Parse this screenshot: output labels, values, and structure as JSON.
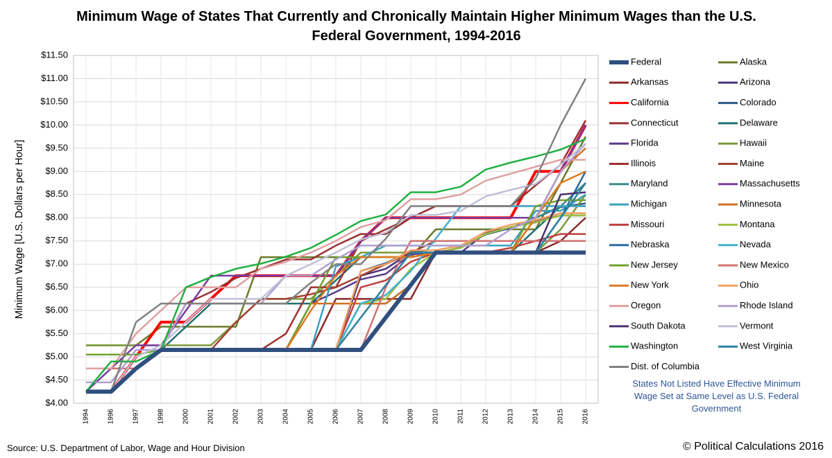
{
  "chart_data": {
    "type": "line",
    "title": "Minimum Wage of States That Currently and Chronically Maintain Higher Minimum Wages than the U.S. Federal Government, 1994-2016",
    "y_label": "Minimum Wage [U.S. Dollars per Hour]",
    "note": "States Not Listed Have Effective Minimum Wage Set at Same Level as U.S. Federal Government",
    "source": "Source: U.S. Department of Labor, Wage and Hour Division",
    "copyright": "© Political Calculations 2016",
    "grid": true,
    "ylim": [
      4.0,
      11.5
    ],
    "yticks": [
      {
        "value": 4.0,
        "label": "$4.00"
      },
      {
        "value": 4.5,
        "label": "$4.50"
      },
      {
        "value": 5.0,
        "label": "$5.00"
      },
      {
        "value": 5.5,
        "label": "$5.50"
      },
      {
        "value": 6.0,
        "label": "$6.00"
      },
      {
        "value": 6.5,
        "label": "$6.50"
      },
      {
        "value": 7.0,
        "label": "$7.00"
      },
      {
        "value": 7.5,
        "label": "$7.50"
      },
      {
        "value": 8.0,
        "label": "$8.00"
      },
      {
        "value": 8.5,
        "label": "$8.50"
      },
      {
        "value": 9.0,
        "label": "$9.00"
      },
      {
        "value": 9.5,
        "label": "$9.50"
      },
      {
        "value": 10.0,
        "label": "$10.00"
      },
      {
        "value": 10.5,
        "label": "$10.50"
      },
      {
        "value": 11.0,
        "label": "$11.00"
      },
      {
        "value": 11.5,
        "label": "$11.50"
      }
    ],
    "categories": [
      "1994",
      "1996",
      "1997",
      "1998",
      "2000",
      "2001",
      "2002",
      "2003",
      "2004",
      "2005",
      "2006",
      "2007",
      "2008",
      "2009",
      "2010",
      "2011",
      "2012",
      "2013",
      "2014",
      "2015",
      "2016"
    ],
    "series": [
      {
        "name": "Federal",
        "color": "#2f4f7f",
        "values": [
          4.25,
          4.25,
          4.75,
          5.15,
          5.15,
          5.15,
          5.15,
          5.15,
          5.15,
          5.15,
          5.15,
          5.15,
          5.85,
          6.55,
          7.25,
          7.25,
          7.25,
          7.25,
          7.25,
          7.25,
          7.25
        ]
      },
      {
        "name": "Alaska",
        "color": "#6b7a2a",
        "values": [
          5.25,
          5.25,
          5.25,
          5.65,
          5.65,
          5.65,
          5.65,
          7.15,
          7.15,
          7.15,
          7.15,
          7.15,
          7.15,
          7.15,
          7.75,
          7.75,
          7.75,
          7.75,
          7.75,
          8.75,
          9.75
        ]
      },
      {
        "name": "Arkansas",
        "color": "#8b2a2a",
        "values": [
          4.25,
          4.25,
          4.75,
          5.15,
          5.15,
          5.15,
          5.15,
          5.15,
          5.15,
          5.15,
          6.25,
          6.25,
          6.25,
          6.25,
          7.25,
          7.25,
          7.25,
          7.25,
          7.25,
          7.5,
          8.0
        ]
      },
      {
        "name": "Arizona",
        "color": "#4b3278",
        "values": [
          4.25,
          4.25,
          4.75,
          5.15,
          5.15,
          5.15,
          5.15,
          5.15,
          5.15,
          5.15,
          5.15,
          6.75,
          6.9,
          7.25,
          7.25,
          7.35,
          7.65,
          7.8,
          7.9,
          8.05,
          8.05
        ]
      },
      {
        "name": "California",
        "color": "#ff0000",
        "values": [
          4.25,
          4.25,
          5.0,
          5.75,
          5.75,
          6.25,
          6.75,
          6.75,
          6.75,
          6.75,
          6.75,
          7.5,
          8.0,
          8.0,
          8.0,
          8.0,
          8.0,
          8.0,
          9.0,
          9.0,
          10.0
        ]
      },
      {
        "name": "Colorado",
        "color": "#2a5a8a",
        "values": [
          4.25,
          4.25,
          4.75,
          5.15,
          5.15,
          5.15,
          5.15,
          5.15,
          5.15,
          5.15,
          5.15,
          6.85,
          7.02,
          7.28,
          7.24,
          7.36,
          7.64,
          7.78,
          8.0,
          8.23,
          8.31
        ]
      },
      {
        "name": "Connecticut",
        "color": "#9a3030",
        "values": [
          4.27,
          4.27,
          4.77,
          5.18,
          6.15,
          6.4,
          6.7,
          6.9,
          7.1,
          7.1,
          7.4,
          7.65,
          7.65,
          8.0,
          8.25,
          8.25,
          8.25,
          8.25,
          8.7,
          9.15,
          10.1
        ]
      },
      {
        "name": "Delaware",
        "color": "#1f7070",
        "values": [
          4.25,
          4.25,
          4.75,
          5.15,
          5.65,
          6.15,
          6.15,
          6.15,
          6.15,
          6.15,
          6.65,
          7.15,
          7.15,
          7.15,
          7.25,
          7.25,
          7.25,
          7.25,
          7.75,
          8.25,
          8.25
        ]
      },
      {
        "name": "Florida",
        "color": "#5a3a8a",
        "values": [
          4.25,
          4.25,
          4.75,
          5.15,
          5.15,
          5.15,
          5.15,
          5.15,
          5.15,
          6.15,
          6.4,
          6.67,
          6.79,
          7.21,
          7.25,
          7.25,
          7.67,
          7.79,
          7.93,
          8.05,
          8.05
        ]
      },
      {
        "name": "Hawaii",
        "color": "#7a9a3a",
        "values": [
          5.25,
          5.25,
          5.25,
          5.25,
          5.25,
          5.25,
          5.75,
          6.25,
          6.25,
          6.25,
          6.75,
          7.25,
          7.25,
          7.25,
          7.25,
          7.25,
          7.25,
          7.25,
          7.25,
          7.75,
          8.5
        ]
      },
      {
        "name": "Illinois",
        "color": "#a03030",
        "values": [
          4.25,
          4.25,
          4.75,
          5.15,
          5.15,
          5.15,
          5.15,
          5.15,
          5.5,
          6.5,
          6.5,
          7.5,
          7.75,
          8.0,
          8.25,
          8.25,
          8.25,
          8.25,
          8.25,
          8.25,
          8.25
        ]
      },
      {
        "name": "Maine",
        "color": "#a04030",
        "values": [
          4.25,
          4.25,
          4.75,
          5.15,
          5.15,
          5.15,
          5.75,
          6.25,
          6.25,
          6.35,
          6.5,
          6.75,
          7.0,
          7.25,
          7.5,
          7.5,
          7.5,
          7.5,
          7.5,
          7.5,
          7.5
        ]
      },
      {
        "name": "Maryland",
        "color": "#3a8a8a",
        "values": [
          4.25,
          4.25,
          4.75,
          5.15,
          5.15,
          5.15,
          5.15,
          5.15,
          5.15,
          5.15,
          5.15,
          6.15,
          6.15,
          6.55,
          7.25,
          7.25,
          7.25,
          7.25,
          8.0,
          8.25,
          8.75
        ]
      },
      {
        "name": "Massachusetts",
        "color": "#7a3aa0",
        "values": [
          4.25,
          4.75,
          5.25,
          5.25,
          6.0,
          6.75,
          6.75,
          6.75,
          6.75,
          6.75,
          6.75,
          7.5,
          8.0,
          8.0,
          8.0,
          8.0,
          8.0,
          8.0,
          8.0,
          9.0,
          10.0
        ]
      },
      {
        "name": "Michigan",
        "color": "#3aa0c0",
        "values": [
          4.25,
          4.25,
          4.75,
          5.15,
          5.15,
          5.15,
          5.15,
          5.15,
          5.15,
          5.15,
          6.95,
          7.15,
          7.4,
          7.4,
          7.4,
          7.4,
          7.4,
          7.4,
          8.15,
          8.15,
          8.5
        ]
      },
      {
        "name": "Minnesota",
        "color": "#d07020",
        "values": [
          4.25,
          4.25,
          4.75,
          5.15,
          5.15,
          5.15,
          5.15,
          5.15,
          5.15,
          6.15,
          6.15,
          6.15,
          6.15,
          6.55,
          7.25,
          7.25,
          7.25,
          7.25,
          8.0,
          9.0,
          9.5
        ]
      },
      {
        "name": "Missouri",
        "color": "#c04040",
        "values": [
          4.25,
          4.25,
          4.75,
          5.15,
          5.15,
          5.15,
          5.15,
          5.15,
          5.15,
          5.15,
          5.15,
          6.5,
          6.65,
          7.05,
          7.25,
          7.25,
          7.25,
          7.35,
          7.5,
          7.65,
          7.65
        ]
      },
      {
        "name": "Montana",
        "color": "#a0c040",
        "values": [
          4.25,
          4.25,
          4.75,
          5.15,
          5.15,
          5.15,
          5.15,
          5.15,
          5.15,
          5.15,
          5.15,
          6.15,
          6.25,
          6.9,
          7.25,
          7.35,
          7.65,
          7.8,
          7.9,
          8.05,
          8.05
        ]
      },
      {
        "name": "Nebraska",
        "color": "#2a6aa0",
        "values": [
          4.25,
          4.25,
          4.75,
          5.15,
          5.15,
          5.15,
          5.15,
          5.15,
          5.15,
          5.15,
          5.15,
          5.15,
          5.85,
          6.55,
          7.25,
          7.25,
          7.25,
          7.25,
          7.25,
          8.0,
          9.0
        ]
      },
      {
        "name": "Nevada",
        "color": "#40b0d0",
        "values": [
          4.25,
          4.25,
          4.75,
          5.15,
          5.15,
          5.15,
          5.15,
          5.15,
          5.15,
          5.15,
          5.15,
          6.15,
          6.33,
          6.85,
          7.55,
          8.25,
          8.25,
          8.25,
          8.25,
          8.25,
          8.25
        ]
      },
      {
        "name": "New Jersey",
        "color": "#70a030",
        "values": [
          5.05,
          5.05,
          5.05,
          5.15,
          5.15,
          5.15,
          5.15,
          5.15,
          5.15,
          6.15,
          7.15,
          7.15,
          7.15,
          7.15,
          7.25,
          7.25,
          7.25,
          7.25,
          8.25,
          8.38,
          8.38
        ]
      },
      {
        "name": "New Mexico",
        "color": "#d07070",
        "values": [
          4.75,
          4.75,
          4.75,
          5.15,
          5.15,
          5.15,
          5.15,
          5.15,
          5.15,
          5.15,
          5.15,
          5.15,
          6.5,
          7.5,
          7.5,
          7.5,
          7.5,
          7.5,
          7.5,
          7.5,
          7.5
        ]
      },
      {
        "name": "New York",
        "color": "#e07a20",
        "values": [
          4.25,
          4.25,
          4.75,
          5.15,
          5.15,
          5.15,
          5.15,
          5.15,
          5.15,
          6.0,
          6.75,
          7.15,
          7.15,
          7.15,
          7.25,
          7.25,
          7.25,
          7.25,
          8.0,
          8.75,
          9.0
        ]
      },
      {
        "name": "Ohio",
        "color": "#f0a060",
        "values": [
          4.25,
          4.25,
          4.75,
          5.15,
          5.15,
          5.15,
          5.15,
          5.15,
          5.15,
          5.15,
          5.15,
          6.85,
          7.0,
          7.3,
          7.3,
          7.4,
          7.7,
          7.85,
          7.95,
          8.1,
          8.1
        ]
      },
      {
        "name": "Oregon",
        "color": "#e0a0a0",
        "values": [
          4.75,
          4.75,
          5.5,
          6.0,
          6.5,
          6.5,
          6.5,
          6.9,
          7.05,
          7.25,
          7.5,
          7.8,
          7.95,
          8.4,
          8.4,
          8.5,
          8.8,
          8.95,
          9.1,
          9.25,
          9.25
        ]
      },
      {
        "name": "Rhode Island",
        "color": "#b0a0d0",
        "values": [
          4.45,
          4.45,
          5.15,
          5.15,
          6.15,
          6.15,
          6.15,
          6.15,
          6.75,
          6.75,
          7.1,
          7.4,
          7.4,
          7.4,
          7.4,
          7.4,
          7.4,
          7.75,
          8.0,
          9.0,
          9.6
        ]
      },
      {
        "name": "South Dakota",
        "color": "#4a3070",
        "values": [
          4.25,
          4.25,
          4.75,
          5.15,
          5.15,
          5.15,
          5.15,
          5.15,
          5.15,
          5.15,
          5.15,
          5.15,
          5.85,
          6.55,
          7.25,
          7.25,
          7.25,
          7.25,
          7.25,
          8.5,
          8.55
        ]
      },
      {
        "name": "Vermont",
        "color": "#c0c0d8",
        "values": [
          4.25,
          4.25,
          5.0,
          5.25,
          5.75,
          6.25,
          6.25,
          6.25,
          6.75,
          7.0,
          7.25,
          7.53,
          7.68,
          8.06,
          8.06,
          8.15,
          8.46,
          8.6,
          8.73,
          9.15,
          9.6
        ]
      },
      {
        "name": "Washington",
        "color": "#20b040",
        "values": [
          4.25,
          4.9,
          4.9,
          5.15,
          6.5,
          6.72,
          6.9,
          7.01,
          7.16,
          7.35,
          7.63,
          7.93,
          8.07,
          8.55,
          8.55,
          8.67,
          9.04,
          9.19,
          9.32,
          9.47,
          9.7
        ]
      },
      {
        "name": "West Virginia",
        "color": "#2a80a0",
        "values": [
          4.25,
          4.25,
          4.75,
          5.15,
          5.15,
          5.15,
          5.15,
          5.15,
          5.15,
          5.15,
          5.15,
          5.85,
          6.55,
          7.25,
          7.25,
          7.25,
          7.25,
          7.25,
          7.25,
          8.0,
          8.75
        ]
      },
      {
        "name": "Dist. of Columbia",
        "color": "#808080",
        "values": [
          4.25,
          4.25,
          5.75,
          6.15,
          6.15,
          6.15,
          6.15,
          6.15,
          6.15,
          6.6,
          7.0,
          7.0,
          7.55,
          8.25,
          8.25,
          8.25,
          8.25,
          8.25,
          8.85,
          10.0,
          11.0
        ]
      }
    ]
  }
}
